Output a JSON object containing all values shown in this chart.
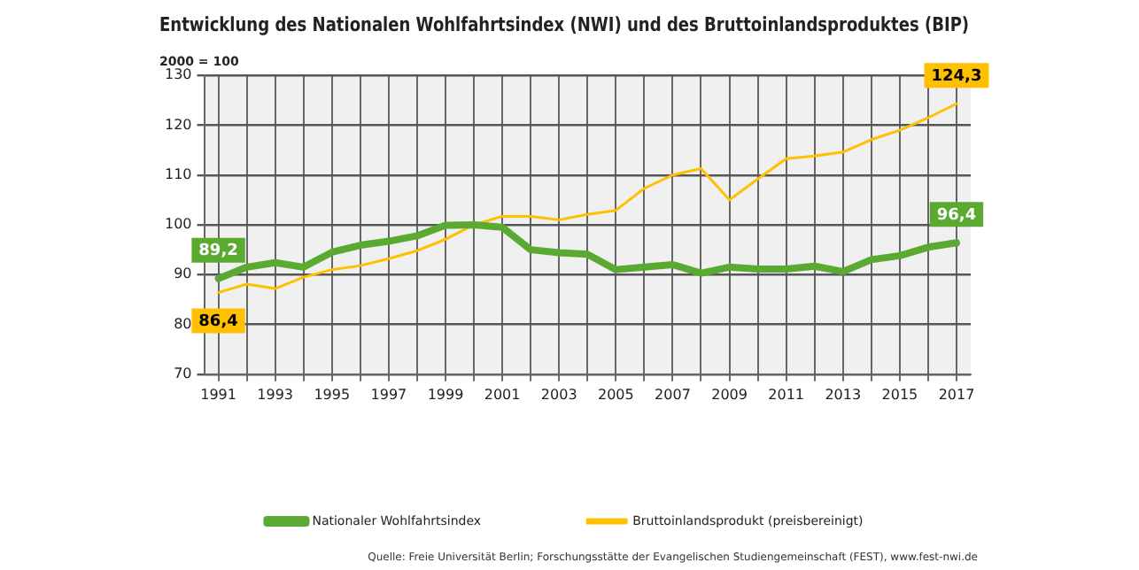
{
  "chart_data": {
    "type": "line",
    "title": "Entwicklung des Nationalen Wohlfahrtsindex (NWI) und des Bruttoinlandsproduktes (BIP)",
    "subtitle": "2000 = 100",
    "x": [
      1991,
      1992,
      1993,
      1994,
      1995,
      1996,
      1997,
      1998,
      1999,
      2000,
      2001,
      2002,
      2003,
      2004,
      2005,
      2006,
      2007,
      2008,
      2009,
      2010,
      2011,
      2012,
      2013,
      2014,
      2015,
      2016,
      2017
    ],
    "series": [
      {
        "name": "Nationaler Wohlfahrtsindex",
        "color": "#5aaa32",
        "values": [
          89.2,
          91.5,
          92.4,
          91.5,
          94.5,
          95.9,
          96.7,
          97.8,
          99.9,
          100,
          99.5,
          95,
          94.4,
          94.1,
          91,
          91.5,
          92,
          90.3,
          91.5,
          91.1,
          91.1,
          91.7,
          90.6,
          93,
          93.8,
          95.5,
          96.4
        ],
        "value_labels": [
          "89,2",
          null,
          null,
          null,
          null,
          null,
          null,
          null,
          null,
          null,
          null,
          null,
          null,
          null,
          null,
          null,
          null,
          null,
          null,
          null,
          null,
          null,
          null,
          null,
          null,
          null,
          "96,4"
        ]
      },
      {
        "name": "Bruttoinlandsprodukt (preisbereinigt)",
        "color": "#ffc000",
        "values": [
          86.4,
          88.1,
          87.2,
          89.5,
          91,
          91.8,
          93.2,
          94.8,
          97.1,
          100,
          101.7,
          101.7,
          101,
          102.1,
          102.9,
          107.3,
          110,
          111.3,
          105,
          109.2,
          113.3,
          113.8,
          114.6,
          117.1,
          119,
          121.5,
          124.3
        ],
        "value_labels": [
          "86,4",
          null,
          null,
          null,
          null,
          null,
          null,
          null,
          null,
          null,
          null,
          null,
          null,
          null,
          null,
          null,
          null,
          null,
          null,
          null,
          null,
          null,
          null,
          null,
          null,
          null,
          "124,3"
        ]
      }
    ],
    "xlim": [
      1990.5,
      2017.5
    ],
    "xticks": [
      1991,
      {
        "value": 1992,
        "label": null
      },
      1993,
      {
        "value": 1994,
        "label": null
      },
      1995,
      {
        "value": 1996,
        "label": null
      },
      1997,
      {
        "value": 1998,
        "label": null
      },
      1999,
      {
        "value": 2000,
        "label": null
      },
      2001,
      {
        "value": 2002,
        "label": null
      },
      2003,
      {
        "value": 2004,
        "label": null
      },
      2005,
      {
        "value": 2006,
        "label": null
      },
      2007,
      {
        "value": 2008,
        "label": null
      },
      2009,
      {
        "value": 2010,
        "label": null
      },
      2011,
      {
        "value": 2012,
        "label": null
      },
      2013,
      {
        "value": 2014,
        "label": null
      },
      2015,
      {
        "value": 2016,
        "label": null
      },
      2017
    ],
    "ylim": [
      70,
      130
    ],
    "yticks": [
      70,
      80,
      90,
      100,
      110,
      120,
      130
    ],
    "grid": true,
    "legend": "bottom",
    "marker": "none",
    "line_style": "solid",
    "annotations": [
      "Quelle: Freie Universität Berlin; Forschungsstätte der Evangelischen Studiengemeinschaft (FEST), www.fest-nwi.de"
    ]
  }
}
